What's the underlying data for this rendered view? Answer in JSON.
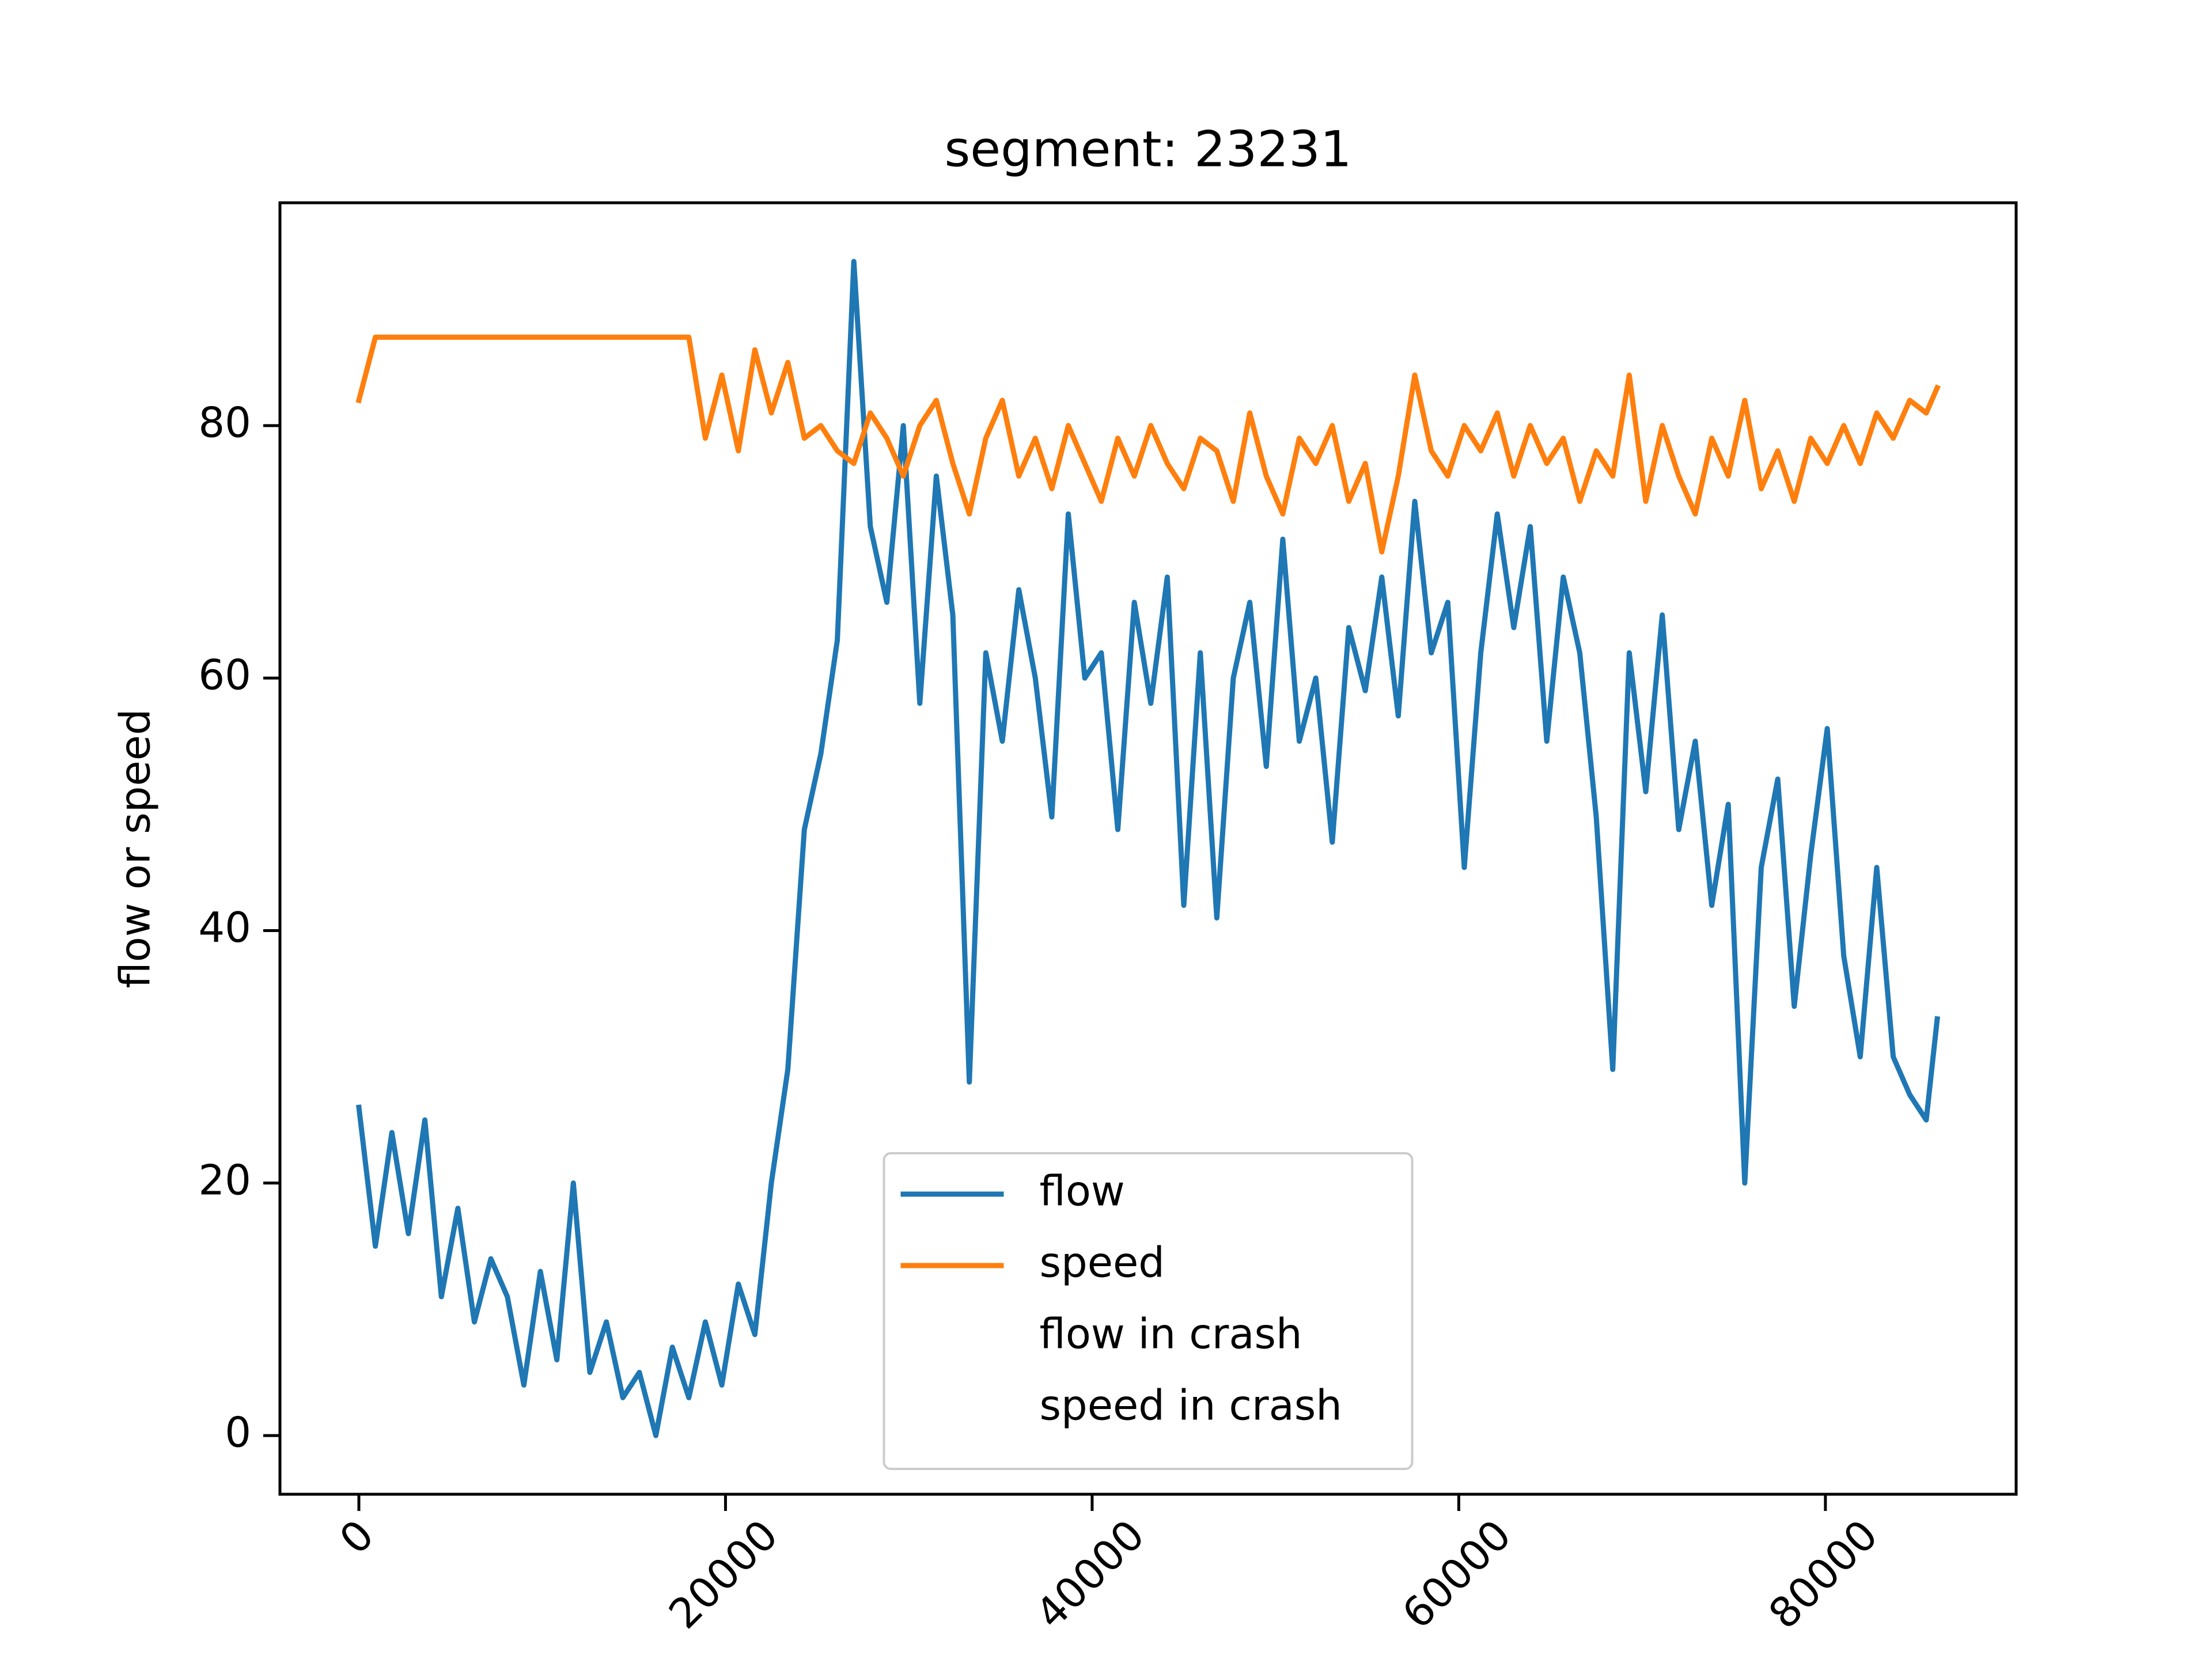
{
  "chart_data": {
    "type": "line",
    "title": "segment: 23231",
    "ylabel": "flow or speed",
    "x": [
      0,
      900,
      1800,
      2700,
      3600,
      4500,
      5400,
      6300,
      7200,
      8100,
      9000,
      9900,
      10800,
      11700,
      12600,
      13500,
      14400,
      15300,
      16200,
      17100,
      18000,
      18900,
      19800,
      20700,
      21600,
      22500,
      23400,
      24300,
      25200,
      26100,
      27000,
      27900,
      28800,
      29700,
      30600,
      31500,
      32400,
      33300,
      34200,
      35100,
      36000,
      36900,
      37800,
      38700,
      39600,
      40500,
      41400,
      42300,
      43200,
      44100,
      45000,
      45900,
      46800,
      47700,
      48600,
      49500,
      50400,
      51300,
      52200,
      53100,
      54000,
      54900,
      55800,
      56700,
      57600,
      58500,
      59400,
      60300,
      61200,
      62100,
      63000,
      63900,
      64800,
      65700,
      66600,
      67500,
      68400,
      69300,
      70200,
      71100,
      72000,
      72900,
      73800,
      74700,
      75600,
      76500,
      77400,
      78300,
      79200,
      80100,
      81000,
      81900,
      82800,
      83700,
      84600,
      85500,
      86100
    ],
    "series": [
      {
        "name": "flow",
        "color": "#1f77b4",
        "values": [
          26,
          15,
          24,
          16,
          25,
          11,
          18,
          9,
          14,
          11,
          4,
          13,
          6,
          20,
          5,
          9,
          3,
          5,
          0,
          7,
          3,
          9,
          4,
          12,
          8,
          20,
          29,
          48,
          54,
          63,
          93,
          72,
          66,
          80,
          58,
          76,
          65,
          28,
          62,
          55,
          67,
          60,
          49,
          73,
          60,
          62,
          48,
          66,
          58,
          68,
          42,
          62,
          41,
          60,
          66,
          53,
          71,
          55,
          60,
          47,
          64,
          59,
          68,
          57,
          74,
          62,
          66,
          45,
          62,
          73,
          64,
          72,
          55,
          68,
          62,
          49,
          29,
          62,
          51,
          65,
          48,
          55,
          42,
          50,
          20,
          45,
          52,
          34,
          46,
          56,
          38,
          30,
          45,
          30,
          27,
          25,
          33
        ]
      },
      {
        "name": "speed",
        "color": "#ff7f0e",
        "values": [
          82,
          87,
          87,
          87,
          87,
          87,
          87,
          87,
          87,
          87,
          87,
          87,
          87,
          87,
          87,
          87,
          87,
          87,
          87,
          87,
          87,
          79,
          84,
          78,
          86,
          81,
          85,
          79,
          80,
          78,
          77,
          81,
          79,
          76,
          80,
          82,
          77,
          73,
          79,
          82,
          76,
          79,
          75,
          80,
          77,
          74,
          79,
          76,
          80,
          77,
          75,
          79,
          78,
          74,
          81,
          76,
          73,
          79,
          77,
          80,
          74,
          77,
          70,
          76,
          84,
          78,
          76,
          80,
          78,
          81,
          76,
          80,
          77,
          79,
          74,
          78,
          76,
          84,
          74,
          80,
          76,
          73,
          79,
          76,
          82,
          75,
          78,
          74,
          79,
          77,
          80,
          77,
          81,
          79,
          82,
          81,
          83
        ]
      },
      {
        "name": "flow in crash",
        "values": [
          null,
          null,
          null,
          null,
          null,
          null,
          null,
          null,
          null,
          null,
          null,
          null,
          null,
          null,
          null,
          null,
          null,
          null,
          null,
          null,
          null,
          null,
          null,
          null,
          null,
          null,
          null,
          null,
          null,
          null,
          null,
          null,
          null,
          null,
          null,
          null,
          null,
          null,
          null,
          null,
          null,
          null,
          null,
          null,
          null,
          null,
          null,
          null,
          null,
          null,
          null,
          null,
          null,
          null,
          null,
          null,
          null,
          null,
          null,
          null,
          null,
          null,
          null,
          null,
          null,
          null,
          null,
          null,
          null,
          null,
          null,
          null,
          null,
          null,
          null,
          null,
          null,
          null,
          null,
          null,
          null,
          null,
          null,
          null,
          null,
          null,
          null,
          null,
          null,
          null,
          null,
          null,
          null,
          null,
          null,
          null,
          null
        ]
      },
      {
        "name": "speed in crash",
        "values": [
          null,
          null,
          null,
          null,
          null,
          null,
          null,
          null,
          null,
          null,
          null,
          null,
          null,
          null,
          null,
          null,
          null,
          null,
          null,
          null,
          null,
          null,
          null,
          null,
          null,
          null,
          null,
          null,
          null,
          null,
          null,
          null,
          null,
          null,
          null,
          null,
          null,
          null,
          null,
          null,
          null,
          null,
          null,
          null,
          null,
          null,
          null,
          null,
          null,
          null,
          null,
          null,
          null,
          null,
          null,
          null,
          null,
          null,
          null,
          null,
          null,
          null,
          null,
          null,
          null,
          null,
          null,
          null,
          null,
          null,
          null,
          null,
          null,
          null,
          null,
          null,
          null,
          null,
          null,
          null,
          null,
          null,
          null,
          null,
          null,
          null,
          null,
          null,
          null,
          null,
          null,
          null,
          null,
          null,
          null,
          null,
          null
        ]
      }
    ],
    "xlim": [
      -4305,
      90405
    ],
    "ylim": [
      -4.65,
      97.65
    ],
    "xticks": [
      0,
      20000,
      40000,
      60000,
      80000
    ],
    "yticks": [
      0,
      20,
      40,
      60,
      80
    ],
    "grid": false,
    "legend": "lower center"
  }
}
